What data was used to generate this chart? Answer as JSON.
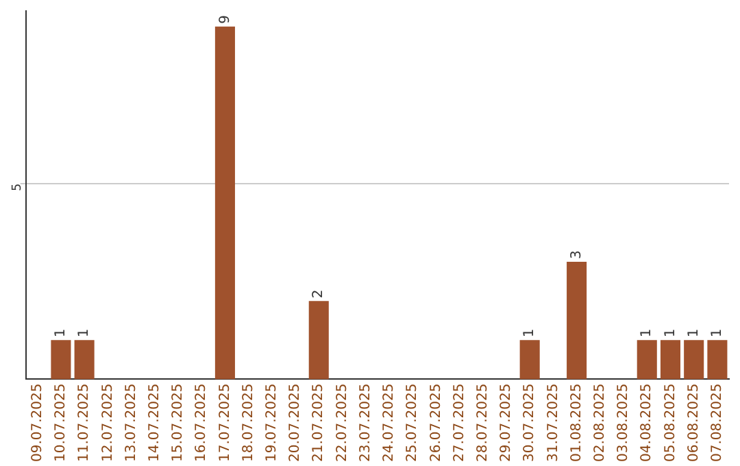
{
  "chart_data": {
    "type": "bar",
    "categories": [
      "09.07.2025",
      "10.07.2025",
      "11.07.2025",
      "12.07.2025",
      "13.07.2025",
      "14.07.2025",
      "15.07.2025",
      "16.07.2025",
      "17.07.2025",
      "18.07.2025",
      "19.07.2025",
      "20.07.2025",
      "21.07.2025",
      "22.07.2025",
      "23.07.2025",
      "24.07.2025",
      "25.07.2025",
      "26.07.2025",
      "27.07.2025",
      "28.07.2025",
      "29.07.2025",
      "30.07.2025",
      "31.07.2025",
      "01.08.2025",
      "02.08.2025",
      "03.08.2025",
      "04.08.2025",
      "05.08.2025",
      "06.08.2025",
      "07.08.2025"
    ],
    "values": [
      0,
      1,
      1,
      0,
      0,
      0,
      0,
      0,
      9,
      0,
      0,
      0,
      2,
      0,
      0,
      0,
      0,
      0,
      0,
      0,
      0,
      1,
      0,
      3,
      0,
      0,
      1,
      1,
      1,
      1
    ],
    "value_labels": [
      null,
      "1",
      "1",
      null,
      null,
      null,
      null,
      null,
      "9",
      null,
      null,
      null,
      "2",
      null,
      null,
      null,
      null,
      null,
      null,
      null,
      null,
      "1",
      null,
      "3",
      null,
      null,
      "1",
      "1",
      "1",
      "1"
    ],
    "color": "#a0522d",
    "ylim": [
      0,
      9.4
    ],
    "yticks": [
      5
    ],
    "grid": "y",
    "legend": false
  }
}
